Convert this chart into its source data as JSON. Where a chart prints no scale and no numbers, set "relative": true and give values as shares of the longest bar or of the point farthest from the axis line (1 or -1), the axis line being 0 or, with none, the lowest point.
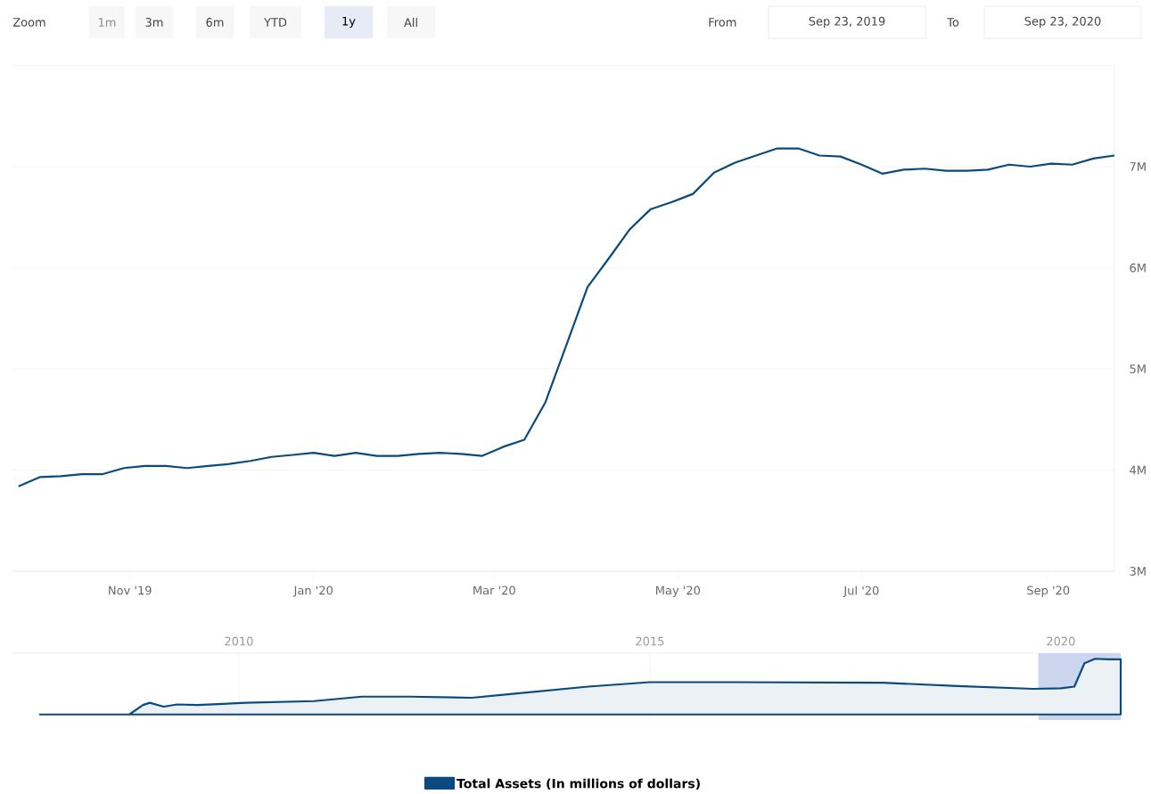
{
  "chart_data": [
    {
      "type": "line",
      "annotations": [
        "Zoom",
        "1m",
        "3m",
        "6m",
        "YTD",
        "1y",
        "All",
        "From",
        "Sep 23, 2019",
        "To",
        "Sep 23, 2020"
      ],
      "x": [
        "2019-09-25",
        "2019-10-02",
        "2019-10-09",
        "2019-10-16",
        "2019-10-23",
        "2019-10-30",
        "2019-11-06",
        "2019-11-13",
        "2019-11-20",
        "2019-11-27",
        "2019-12-04",
        "2019-12-11",
        "2019-12-18",
        "2019-12-25",
        "2020-01-01",
        "2020-01-08",
        "2020-01-15",
        "2020-01-22",
        "2020-01-29",
        "2020-02-05",
        "2020-02-12",
        "2020-02-19",
        "2020-02-26",
        "2020-03-04",
        "2020-03-11",
        "2020-03-18",
        "2020-03-25",
        "2020-04-01",
        "2020-04-08",
        "2020-04-15",
        "2020-04-22",
        "2020-04-29",
        "2020-05-06",
        "2020-05-13",
        "2020-05-20",
        "2020-05-27",
        "2020-06-03",
        "2020-06-10",
        "2020-06-17",
        "2020-06-24",
        "2020-07-01",
        "2020-07-08",
        "2020-07-15",
        "2020-07-22",
        "2020-07-29",
        "2020-08-05",
        "2020-08-12",
        "2020-08-19",
        "2020-08-26",
        "2020-09-02",
        "2020-09-09",
        "2020-09-16",
        "2020-09-23"
      ],
      "series": [
        {
          "name": "Total Assets (In millions of dollars)",
          "color": "#0b4a7e",
          "values": [
            3840000,
            3930000,
            3940000,
            3960000,
            3960000,
            4020000,
            4040000,
            4040000,
            4020000,
            4040000,
            4060000,
            4090000,
            4130000,
            4150000,
            4170000,
            4140000,
            4170000,
            4140000,
            4140000,
            4160000,
            4170000,
            4160000,
            4140000,
            4230000,
            4300000,
            4670000,
            5240000,
            5810000,
            6090000,
            6380000,
            6580000,
            6650000,
            6730000,
            6940000,
            7040000,
            7110000,
            7180000,
            7180000,
            7110000,
            7100000,
            7020000,
            6930000,
            6970000,
            6980000,
            6960000,
            6960000,
            6970000,
            7020000,
            7000000,
            7030000,
            7020000,
            7080000,
            7110000
          ]
        }
      ],
      "xlim": [
        "2019-09-23",
        "2020-09-23"
      ],
      "xticks": [
        {
          "value": "2019-11-01",
          "label": "Nov '19"
        },
        {
          "value": "2020-01-01",
          "label": "Jan '20"
        },
        {
          "value": "2020-03-01",
          "label": "Mar '20"
        },
        {
          "value": "2020-05-01",
          "label": "May '20"
        },
        {
          "value": "2020-07-01",
          "label": "Jul '20"
        },
        {
          "value": "2020-09-01",
          "label": "Sep '20"
        }
      ],
      "ylim": [
        3000000,
        8000000
      ],
      "yticks": [
        {
          "value": 3000000,
          "label": "3M"
        },
        {
          "value": 4000000,
          "label": "4M"
        },
        {
          "value": 5000000,
          "label": "5M"
        },
        {
          "value": 6000000,
          "label": "6M"
        },
        {
          "value": 7000000,
          "label": "7M"
        },
        {
          "value": 8000000,
          "label": null
        }
      ],
      "grid": "y",
      "legend": "bottom"
    },
    {
      "type": "area",
      "relative": true,
      "x": [
        "2007-08",
        "2008-09",
        "2008-11",
        "2008-12",
        "2009-02",
        "2009-04",
        "2009-07",
        "2010-02",
        "2010-12",
        "2011-07",
        "2012-02",
        "2012-11",
        "2013-05",
        "2014-04",
        "2015-01",
        "2016-01",
        "2017-11",
        "2018-10",
        "2019-09",
        "2020-01",
        "2020-03",
        "2020-04-15",
        "2020-06",
        "2020-08",
        "2020-09-23"
      ],
      "series": [
        {
          "color": "#0b4a7e",
          "values": [
            0,
            0,
            0.17,
            0.21,
            0.14,
            0.18,
            0.17,
            0.21,
            0.24,
            0.32,
            0.32,
            0.3,
            0.37,
            0.5,
            0.58,
            0.58,
            0.57,
            0.51,
            0.46,
            0.47,
            0.5,
            0.92,
            1,
            0.99,
            0.99
          ]
        }
      ],
      "xlim": [
        "2007-04",
        "2020-09-23"
      ],
      "xticks": [
        {
          "value": "2010-01-01",
          "label": "2010"
        },
        {
          "value": "2015-01-01",
          "label": "2015"
        },
        {
          "value": "2020-01-01",
          "label": "2020"
        }
      ],
      "bands": [
        {
          "axis": "x",
          "from": "2019-09-23",
          "to": "2020-09-23",
          "color": "#cbd6ee"
        }
      ],
      "grid": "x",
      "tick_labels": "x"
    }
  ]
}
